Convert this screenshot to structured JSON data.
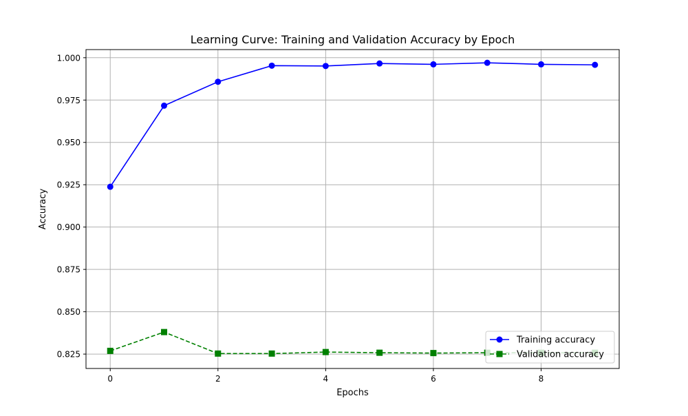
{
  "chart_data": {
    "type": "line",
    "title": "Learning Curve: Training and Validation Accuracy by Epoch",
    "xlabel": "Epochs",
    "ylabel": "Accuracy",
    "x": [
      0,
      1,
      2,
      3,
      4,
      5,
      6,
      7,
      8,
      9
    ],
    "xlim": [
      -0.45,
      9.45
    ],
    "ylim": [
      0.8165,
      1.0048
    ],
    "xticks": [
      0,
      2,
      4,
      6,
      8
    ],
    "yticks": [
      0.825,
      0.85,
      0.875,
      0.9,
      0.925,
      0.95,
      0.975,
      1.0
    ],
    "ytick_labels": [
      "0.825",
      "0.850",
      "0.875",
      "0.900",
      "0.925",
      "0.950",
      "0.975",
      "1.000"
    ],
    "grid": true,
    "legend_position": "lower-right",
    "series": [
      {
        "name": "Training accuracy",
        "color": "#0000ff",
        "marker": "circle",
        "line_style": "solid",
        "values": [
          0.9238,
          0.9717,
          0.9858,
          0.9953,
          0.9951,
          0.9966,
          0.9961,
          0.997,
          0.9961,
          0.9958
        ]
      },
      {
        "name": "Validation accuracy",
        "color": "#008000",
        "marker": "square",
        "line_style": "dashed",
        "values": [
          0.8269,
          0.838,
          0.8253,
          0.8253,
          0.8262,
          0.8258,
          0.8256,
          0.8258,
          0.8258,
          0.8258
        ]
      }
    ]
  }
}
